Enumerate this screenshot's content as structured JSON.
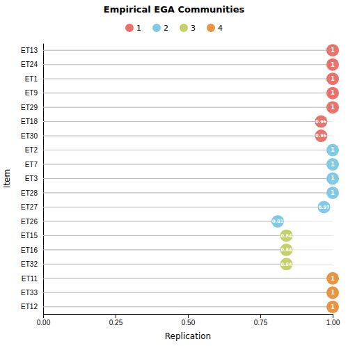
{
  "chart_data": {
    "type": "lollipop",
    "orientation": "horizontal",
    "title": "Empirical EGA Communities",
    "xlabel": "Replication",
    "ylabel": "Item",
    "categories": [
      "ET13",
      "ET24",
      "ET1",
      "ET9",
      "ET29",
      "ET18",
      "ET30",
      "ET2",
      "ET7",
      "ET3",
      "ET28",
      "ET27",
      "ET26",
      "ET15",
      "ET16",
      "ET32",
      "ET11",
      "ET33",
      "ET12"
    ],
    "series": [
      {
        "name": "1",
        "color": "#E8736C",
        "values": [
          1.0,
          1.0,
          1.0,
          1.0,
          1.0,
          0.96,
          0.96,
          null,
          null,
          null,
          null,
          null,
          null,
          null,
          null,
          null,
          null,
          null,
          null
        ]
      },
      {
        "name": "2",
        "color": "#82C9E3",
        "values": [
          null,
          null,
          null,
          null,
          null,
          null,
          null,
          1.0,
          1.0,
          1.0,
          1.0,
          0.97,
          0.81,
          null,
          null,
          null,
          null,
          null,
          null
        ]
      },
      {
        "name": "3",
        "color": "#C4D06B",
        "values": [
          null,
          null,
          null,
          null,
          null,
          null,
          null,
          null,
          null,
          null,
          null,
          null,
          null,
          0.84,
          0.84,
          0.84,
          null,
          null,
          null
        ]
      },
      {
        "name": "4",
        "color": "#E89440",
        "values": [
          null,
          null,
          null,
          null,
          null,
          null,
          null,
          null,
          null,
          null,
          null,
          null,
          null,
          null,
          null,
          null,
          1.0,
          1.0,
          1.0
        ]
      }
    ],
    "xlim": [
      0.0,
      1.0
    ],
    "xticks": [
      {
        "value": 0.0,
        "label": "0.00"
      },
      {
        "value": 0.25,
        "label": "0.25"
      },
      {
        "value": 0.5,
        "label": "0.50"
      },
      {
        "value": 0.75,
        "label": "0.75"
      },
      {
        "value": 1.0,
        "label": "1.00"
      }
    ],
    "grid": true,
    "legend": "top",
    "data_labels": true
  }
}
